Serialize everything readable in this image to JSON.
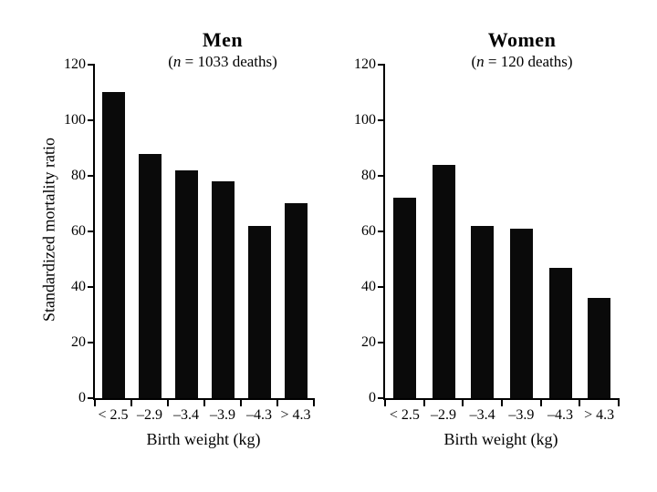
{
  "figure": {
    "background": "#ffffff",
    "text_color": "#000000"
  },
  "chart_data": [
    {
      "type": "bar",
      "title": "Men",
      "subtitle": {
        "pre": "(",
        "n_symbol": "n",
        "post": " = 1033 deaths)"
      },
      "categories": [
        "< 2.5",
        "–2.9",
        "–3.4",
        "–3.9",
        "–4.3",
        "> 4.3"
      ],
      "values": [
        110,
        88,
        82,
        78,
        62,
        70
      ],
      "xlabel": "Birth weight (kg)",
      "ylabel": "Standardized mortality ratio",
      "ylim": [
        0,
        120
      ],
      "yticks": [
        0,
        20,
        40,
        60,
        80,
        100,
        120
      ],
      "bar_color": "#0a0a0a",
      "grid": "off",
      "legend": "none"
    },
    {
      "type": "bar",
      "title": "Women",
      "subtitle": {
        "pre": "(",
        "n_symbol": "n",
        "post": " = 120 deaths)"
      },
      "categories": [
        "< 2.5",
        "–2.9",
        "–3.4",
        "–3.9",
        "–4.3",
        "> 4.3"
      ],
      "values": [
        72,
        84,
        62,
        61,
        47,
        36
      ],
      "xlabel": "Birth weight (kg)",
      "ylim": [
        0,
        120
      ],
      "yticks": [
        0,
        20,
        40,
        60,
        80,
        100,
        120
      ],
      "bar_color": "#0a0a0a",
      "grid": "off",
      "legend": "none"
    }
  ]
}
